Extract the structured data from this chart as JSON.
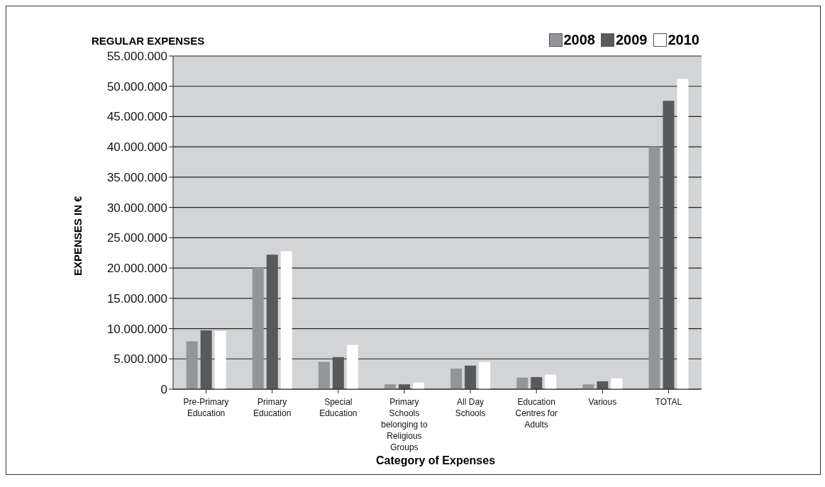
{
  "chart_data": {
    "type": "bar",
    "title": "REGULAR EXPENSES",
    "xlabel": "Category of Expenses",
    "ylabel": "EXPENSES IN €",
    "categories": [
      "Pre-Primary Education",
      "Primary Education",
      "Special Education",
      "Primary Schools belonging to Religious Groups",
      "All Day Schools",
      "Education Centres for Adults",
      "Various",
      "TOTAL"
    ],
    "series": [
      {
        "name": "2008",
        "color": "#939598",
        "values": [
          7900000,
          20000000,
          4500000,
          800000,
          3400000,
          1900000,
          800000,
          40000000
        ]
      },
      {
        "name": "2009",
        "color": "#58595b",
        "values": [
          9700000,
          22200000,
          5300000,
          800000,
          3900000,
          2000000,
          1300000,
          47600000
        ]
      },
      {
        "name": "2010",
        "color": "#ffffff",
        "values": [
          9600000,
          22800000,
          7300000,
          1100000,
          4500000,
          2400000,
          1800000,
          51200000
        ]
      }
    ],
    "ylim": [
      0,
      55000000
    ],
    "yticks": [
      0,
      {
        "value": 5000000,
        "label": "5.000.000"
      },
      {
        "value": 10000000,
        "label": "10.000.000"
      },
      {
        "value": 15000000,
        "label": "15.000.000"
      },
      {
        "value": 20000000,
        "label": "20.000.000"
      },
      {
        "value": 25000000,
        "label": "25.000.000"
      },
      {
        "value": 30000000,
        "label": "30.000.000"
      },
      {
        "value": 35000000,
        "label": "35.000.000"
      },
      {
        "value": 40000000,
        "label": "40.000.000"
      },
      {
        "value": 45000000,
        "label": "45.000.000"
      },
      {
        "value": 50000000,
        "label": "50.000.000"
      },
      {
        "value": 55000000,
        "label": "55.000.000"
      }
    ],
    "grid": "y",
    "legend": "top right"
  }
}
